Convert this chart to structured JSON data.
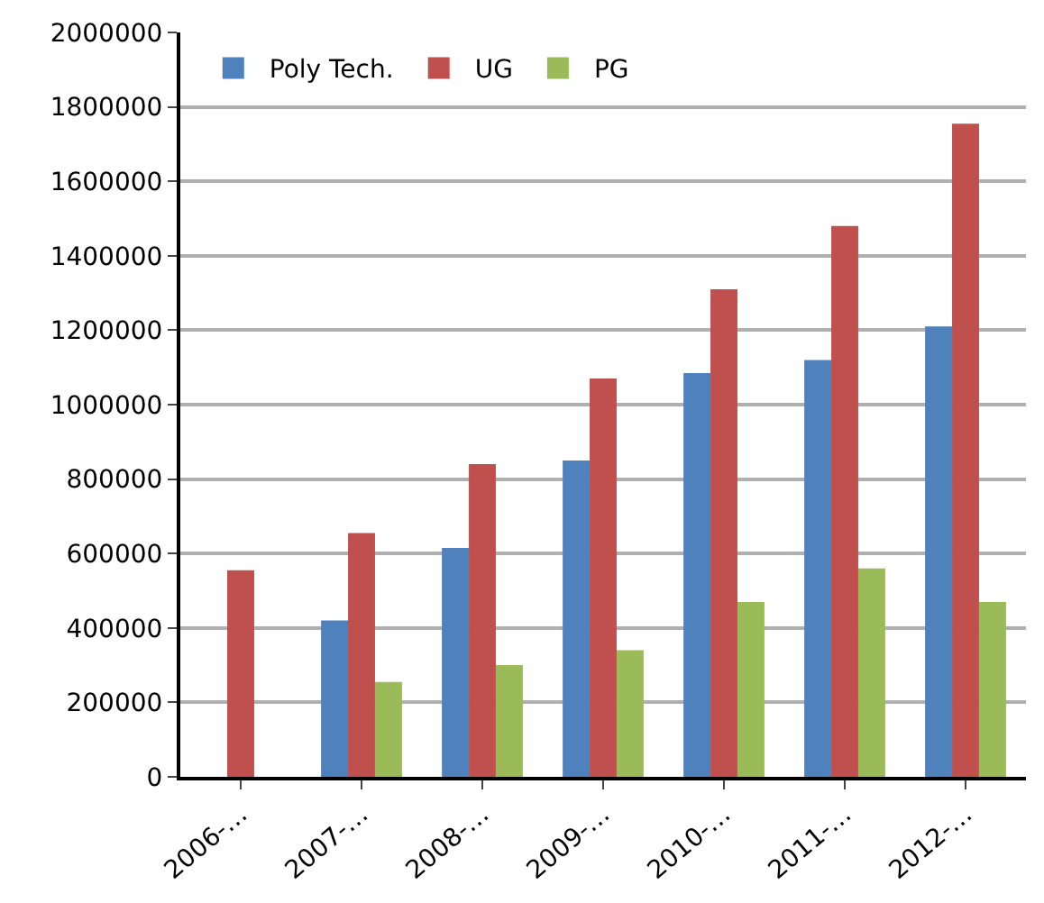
{
  "chart_data": {
    "type": "bar",
    "categories": [
      "2006-…",
      "2007-…",
      "2008-…",
      "2009-…",
      "2010-…",
      "2011-…",
      "2012-…"
    ],
    "series": [
      {
        "name": "Poly Tech.",
        "color": "#4f81bd",
        "values": [
          null,
          420000,
          615000,
          850000,
          1085000,
          1120000,
          1210000
        ]
      },
      {
        "name": "UG",
        "color": "#c0504d",
        "values": [
          555000,
          655000,
          840000,
          1070000,
          1310000,
          1480000,
          1755000
        ]
      },
      {
        "name": "PG",
        "color": "#9bbb59",
        "values": [
          null,
          255000,
          300000,
          340000,
          470000,
          560000,
          470000
        ]
      }
    ],
    "ylim": [
      0,
      2000000
    ],
    "yticks": [
      0,
      200000,
      400000,
      600000,
      800000,
      1000000,
      1200000,
      1400000,
      1600000,
      1800000,
      2000000
    ],
    "grid": "y",
    "legend": "top left"
  }
}
